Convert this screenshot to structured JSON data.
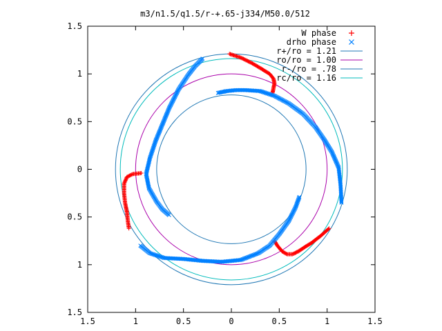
{
  "chart_data": {
    "type": "scatter",
    "title": "m3/n1.5/q1.5/r-+.65-j334/M50.0/512",
    "xlim": [
      -1.5,
      1.5
    ],
    "ylim": [
      -1.5,
      1.5
    ],
    "x_ticks": [
      -1.5,
      -1,
      -0.5,
      0,
      0.5,
      1,
      1.5
    ],
    "y_ticks": [
      -1.5,
      -1,
      -0.5,
      0,
      0.5,
      1,
      1.5
    ],
    "x_tick_labels": [
      "1.5",
      "1",
      "0.5",
      "0",
      "0.5",
      "1",
      "1.5"
    ],
    "y_tick_labels": [
      "1.5",
      "1",
      "0.5",
      "0",
      "0.5",
      "1",
      "1.5"
    ],
    "xlabel": "",
    "ylabel": "",
    "grid": false,
    "legend_position": "top-right",
    "series": [
      {
        "name": "W phase",
        "marker": "+",
        "color": "#ff0000",
        "branches": [
          [
            [
              -0.02,
              1.21
            ],
            [
              0.1,
              1.17
            ],
            [
              0.22,
              1.11
            ],
            [
              0.32,
              1.05
            ],
            [
              0.4,
              1.0
            ],
            [
              0.44,
              0.95
            ],
            [
              0.45,
              0.9
            ],
            [
              0.44,
              0.85
            ],
            [
              0.43,
              0.8
            ]
          ],
          [
            [
              0.45,
              -0.75
            ],
            [
              0.48,
              -0.8
            ],
            [
              0.53,
              -0.86
            ],
            [
              0.58,
              -0.89
            ],
            [
              0.64,
              -0.89
            ],
            [
              0.7,
              -0.86
            ],
            [
              0.76,
              -0.82
            ],
            [
              0.84,
              -0.77
            ],
            [
              0.93,
              -0.7
            ],
            [
              1.02,
              -0.62
            ]
          ],
          [
            [
              -0.94,
              -0.04
            ],
            [
              -1.03,
              -0.05
            ],
            [
              -1.09,
              -0.08
            ],
            [
              -1.12,
              -0.15
            ],
            [
              -1.12,
              -0.25
            ],
            [
              -1.11,
              -0.35
            ],
            [
              -1.09,
              -0.45
            ],
            [
              -1.08,
              -0.55
            ],
            [
              -1.07,
              -0.62
            ]
          ]
        ]
      },
      {
        "name": "drho phase",
        "marker": "x",
        "color": "#0080ff",
        "branches": [
          [
            [
              -0.14,
              0.8
            ],
            [
              -0.05,
              0.82
            ],
            [
              0.05,
              0.83
            ],
            [
              0.15,
              0.83
            ],
            [
              0.3,
              0.82
            ],
            [
              0.45,
              0.77
            ],
            [
              0.6,
              0.69
            ],
            [
              0.75,
              0.58
            ],
            [
              0.88,
              0.44
            ],
            [
              0.97,
              0.31
            ],
            [
              1.05,
              0.18
            ],
            [
              1.12,
              0.02
            ],
            [
              1.14,
              -0.16
            ],
            [
              1.15,
              -0.35
            ]
          ],
          [
            [
              0.71,
              -0.29
            ],
            [
              0.67,
              -0.4
            ],
            [
              0.6,
              -0.54
            ],
            [
              0.5,
              -0.68
            ],
            [
              0.4,
              -0.8
            ],
            [
              0.28,
              -0.88
            ],
            [
              0.1,
              -0.95
            ],
            [
              -0.1,
              -0.97
            ],
            [
              -0.3,
              -0.96
            ],
            [
              -0.5,
              -0.94
            ],
            [
              -0.7,
              -0.93
            ],
            [
              -0.85,
              -0.88
            ],
            [
              -0.95,
              -0.8
            ]
          ],
          [
            [
              -0.65,
              -0.48
            ],
            [
              -0.72,
              -0.42
            ],
            [
              -0.78,
              -0.34
            ],
            [
              -0.86,
              -0.2
            ],
            [
              -0.89,
              -0.05
            ],
            [
              -0.85,
              0.12
            ],
            [
              -0.79,
              0.3
            ],
            [
              -0.72,
              0.47
            ],
            [
              -0.65,
              0.64
            ],
            [
              -0.55,
              0.84
            ],
            [
              -0.45,
              0.99
            ],
            [
              -0.38,
              1.08
            ],
            [
              -0.3,
              1.16
            ]
          ]
        ]
      },
      {
        "name": "r+/ro = 1.21",
        "type": "circle",
        "radius": 1.21,
        "color": "#1f77b4"
      },
      {
        "name": "ro/ro = 1.00",
        "type": "circle",
        "radius": 1.0,
        "color": "#aa00aa"
      },
      {
        "name": "r-/ro = .78",
        "type": "circle",
        "radius": 0.78,
        "color": "#1f77b4"
      },
      {
        "name": "rc/ro = 1.16",
        "type": "circle",
        "radius": 1.16,
        "color": "#00bbbb"
      }
    ]
  }
}
